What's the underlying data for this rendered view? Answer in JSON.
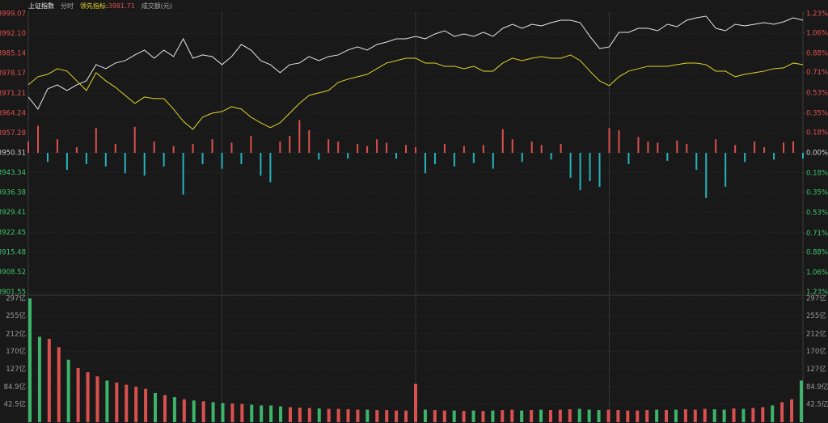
{
  "chart_data": [
    {
      "type": "line",
      "mode": "分时",
      "leader_value": 3981.71,
      "ylim": [
        3901.55,
        3999.07
      ],
      "yticks": [
        {
          "value": 3999.07,
          "label": "3999.07"
        },
        {
          "value": 3992.1,
          "label": "3992.10"
        },
        {
          "value": 3985.14,
          "label": "3985.14"
        },
        {
          "value": 3978.17,
          "label": "3978.17"
        },
        {
          "value": 3971.21,
          "label": "3971.21"
        },
        {
          "value": 3964.24,
          "label": "3964.24"
        },
        {
          "value": 3957.28,
          "label": "3957.28"
        },
        {
          "value": 3950.31,
          "label": "3950.31"
        },
        {
          "value": 3943.34,
          "label": "3943.34"
        },
        {
          "value": 3936.38,
          "label": "3936.38"
        },
        {
          "value": 3929.41,
          "label": "3929.41"
        },
        {
          "value": 3922.45,
          "label": "3922.45"
        },
        {
          "value": 3915.48,
          "label": "3915.48"
        },
        {
          "value": 3908.52,
          "label": "3908.52"
        },
        {
          "value": 3901.55,
          "label": "3901.55"
        }
      ],
      "y2lim": [
        -1.23,
        1.23
      ],
      "y2ticks": [
        {
          "value": 1.23,
          "label": "1.23%"
        },
        {
          "value": 1.06,
          "label": "1.06%"
        },
        {
          "value": 0.88,
          "label": "0.88%"
        },
        {
          "value": 0.71,
          "label": "0.71%"
        },
        {
          "value": 0.53,
          "label": "0.53%"
        },
        {
          "value": 0.35,
          "label": "0.35%"
        },
        {
          "value": 0.18,
          "label": "0.18%"
        },
        {
          "value": 0,
          "label": "0.00%"
        },
        {
          "value": -0.18,
          "label": "0.18%"
        },
        {
          "value": -0.35,
          "label": "0.35%"
        },
        {
          "value": -0.53,
          "label": "0.53%"
        },
        {
          "value": -0.71,
          "label": "0.71%"
        },
        {
          "value": -0.88,
          "label": "0.88%"
        },
        {
          "value": -1.06,
          "label": "1.06%"
        },
        {
          "value": -1.23,
          "label": "1.23%"
        }
      ],
      "grid": true,
      "series": [
        {
          "name": "上证指数",
          "color": "#e6e6e6",
          "values": [
            3969.9,
            3965.65,
            3972.73,
            3974.15,
            3972.17,
            3974.15,
            3975.56,
            3981.23,
            3979.81,
            3981.79,
            3982.64,
            3984.63,
            3986.33,
            3983.49,
            3986.33,
            3984.06,
            3990.29,
            3983.49,
            3984.63,
            3984.06,
            3981.23,
            3984.06,
            3988.31,
            3986.33,
            3982.64,
            3981.23,
            3978.4,
            3981.23,
            3981.79,
            3984.06,
            3982.64,
            3984.06,
            3984.63,
            3986.33,
            3987.46,
            3986.33,
            3988.31,
            3989.16,
            3990.29,
            3990.29,
            3991.14,
            3990.29,
            3991.99,
            3993.12,
            3991.14,
            3991.99,
            3991.14,
            3992.56,
            3991.14,
            3993.97,
            3995.39,
            3993.97,
            3995.39,
            3994.82,
            3995.95,
            3996.8,
            3996.8,
            3995.95,
            3991.14,
            3986.89,
            3987.46,
            3992.56,
            3992.56,
            3993.97,
            3993.97,
            3993.12,
            3995.39,
            3994.54,
            3996.8,
            3997.65,
            3998.22,
            3993.97,
            3993.12,
            3995.39,
            3994.82,
            3995.39,
            3995.95,
            3995.39,
            3996.24,
            3997.65,
            3996.8
          ]
        },
        {
          "name": "领先指标:",
          "color": "#e2d32a",
          "values": [
            3974.15,
            3976.98,
            3977.83,
            3979.81,
            3978.96,
            3975.56,
            3972.17,
            3978.4,
            3975.56,
            3973.3,
            3970.47,
            3967.63,
            3969.9,
            3969.33,
            3969.33,
            3965.65,
            3961.4,
            3958.57,
            3962.82,
            3964.24,
            3964.8,
            3966.5,
            3965.65,
            3962.82,
            3960.84,
            3959.14,
            3960.84,
            3964.24,
            3967.63,
            3970.47,
            3971.32,
            3972.17,
            3975.0,
            3976.13,
            3976.98,
            3977.83,
            3979.81,
            3981.79,
            3982.64,
            3983.49,
            3983.49,
            3981.79,
            3981.79,
            3980.66,
            3980.66,
            3979.81,
            3980.66,
            3978.96,
            3978.96,
            3981.79,
            3983.49,
            3982.64,
            3983.49,
            3984.06,
            3983.49,
            3983.49,
            3984.63,
            3982.64,
            3978.96,
            3975.56,
            3973.87,
            3976.98,
            3978.96,
            3979.81,
            3980.66,
            3980.66,
            3980.66,
            3981.23,
            3981.79,
            3981.79,
            3981.23,
            3978.96,
            3978.96,
            3976.98,
            3977.83,
            3978.4,
            3978.96,
            3979.81,
            3980.1,
            3981.79,
            3981.23
          ]
        },
        {
          "type": "bar",
          "axis": "y2",
          "color": "#d9514e",
          "negative_color": "#27b3bd",
          "values": [
            0.1,
            0.24,
            -0.08,
            0.12,
            -0.15,
            0.05,
            -0.1,
            0.22,
            -0.12,
            0.08,
            -0.18,
            0.23,
            -0.2,
            0.1,
            -0.12,
            0.06,
            -0.37,
            0.08,
            -0.1,
            0.12,
            -0.14,
            0.09,
            -0.1,
            0.15,
            -0.2,
            -0.26,
            0.1,
            0.15,
            0.29,
            0.2,
            -0.06,
            0.12,
            0.1,
            -0.05,
            0.08,
            0.06,
            0.12,
            0.09,
            -0.05,
            0.07,
            0.05,
            -0.18,
            -0.1,
            0.08,
            -0.12,
            0.06,
            -0.09,
            0.07,
            -0.14,
            0.21,
            0.12,
            -0.08,
            0.1,
            0.07,
            -0.06,
            0.08,
            -0.22,
            -0.33,
            -0.25,
            -0.3,
            0.22,
            0.2,
            -0.1,
            0.14,
            0.1,
            0.09,
            -0.07,
            0.11,
            0.08,
            -0.15,
            -0.4,
            0.12,
            -0.3,
            0.07,
            -0.08,
            0.1,
            0.05,
            -0.06,
            0.09,
            0.1,
            -0.05
          ]
        }
      ]
    },
    {
      "type": "bar",
      "title": "成交额(元)",
      "color": "#d9514e",
      "negative_color": "#3cb56a",
      "ylim": [
        0,
        297
      ],
      "yticks": [
        {
          "value": 297,
          "label": "297亿"
        },
        {
          "value": 255,
          "label": "255亿"
        },
        {
          "value": 212,
          "label": "212亿"
        },
        {
          "value": 170,
          "label": "170亿"
        },
        {
          "value": 127,
          "label": "127亿"
        },
        {
          "value": 84.9,
          "label": "84.9亿"
        },
        {
          "value": 42.5,
          "label": "42.5亿"
        }
      ],
      "values": [
        297,
        205,
        200,
        180,
        150,
        130,
        120,
        110,
        100,
        95,
        90,
        85,
        80,
        70,
        65,
        60,
        55,
        52,
        50,
        48,
        46,
        45,
        44,
        42,
        40,
        40,
        38,
        36,
        35,
        34,
        33,
        32,
        32,
        31,
        30,
        30,
        29,
        29,
        28,
        28,
        92,
        30,
        29,
        28,
        28,
        27,
        28,
        27,
        28,
        29,
        30,
        28,
        29,
        30,
        29,
        30,
        31,
        32,
        30,
        29,
        30,
        29,
        28,
        28,
        29,
        30,
        29,
        30,
        31,
        30,
        32,
        31,
        30,
        33,
        32,
        34,
        36,
        40,
        48,
        55,
        100
      ]
    }
  ]
}
